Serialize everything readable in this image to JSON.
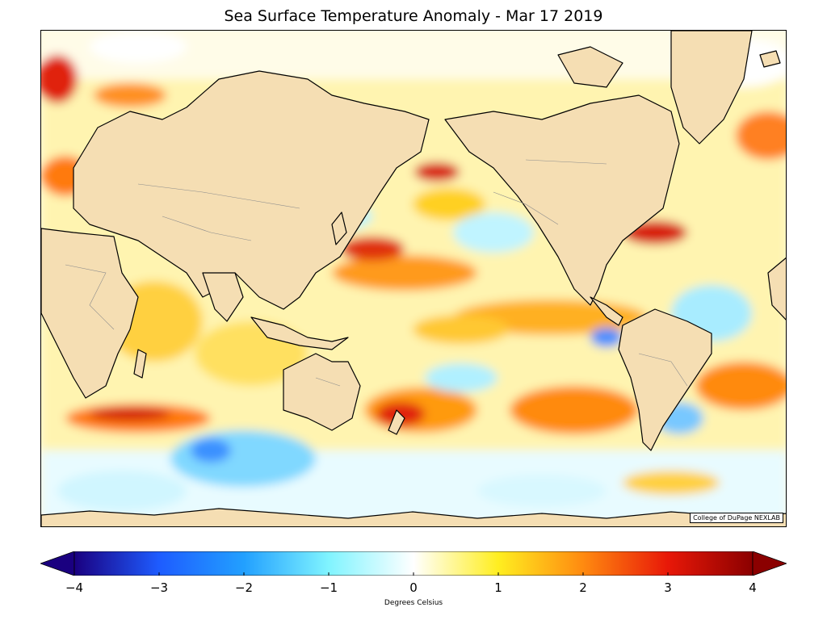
{
  "title": "Sea Surface Temperature Anomaly - Mar 17 2019",
  "credit": "College of DuPage NEXLAB",
  "colorbar": {
    "label": "Degrees Celsius",
    "ticks": [
      "−4",
      "−3",
      "−2",
      "−1",
      "0",
      "1",
      "2",
      "3",
      "4"
    ],
    "range": [
      -4,
      4
    ],
    "extend": "both"
  },
  "colors": {
    "land": "#f5deb3",
    "coast": "#000000",
    "borders": "#8c8c8c",
    "ocean_base": "#fffbe0",
    "cold_max": "#1a0080",
    "neutral": "#ffffff",
    "warm_max": "#8b0000"
  }
}
